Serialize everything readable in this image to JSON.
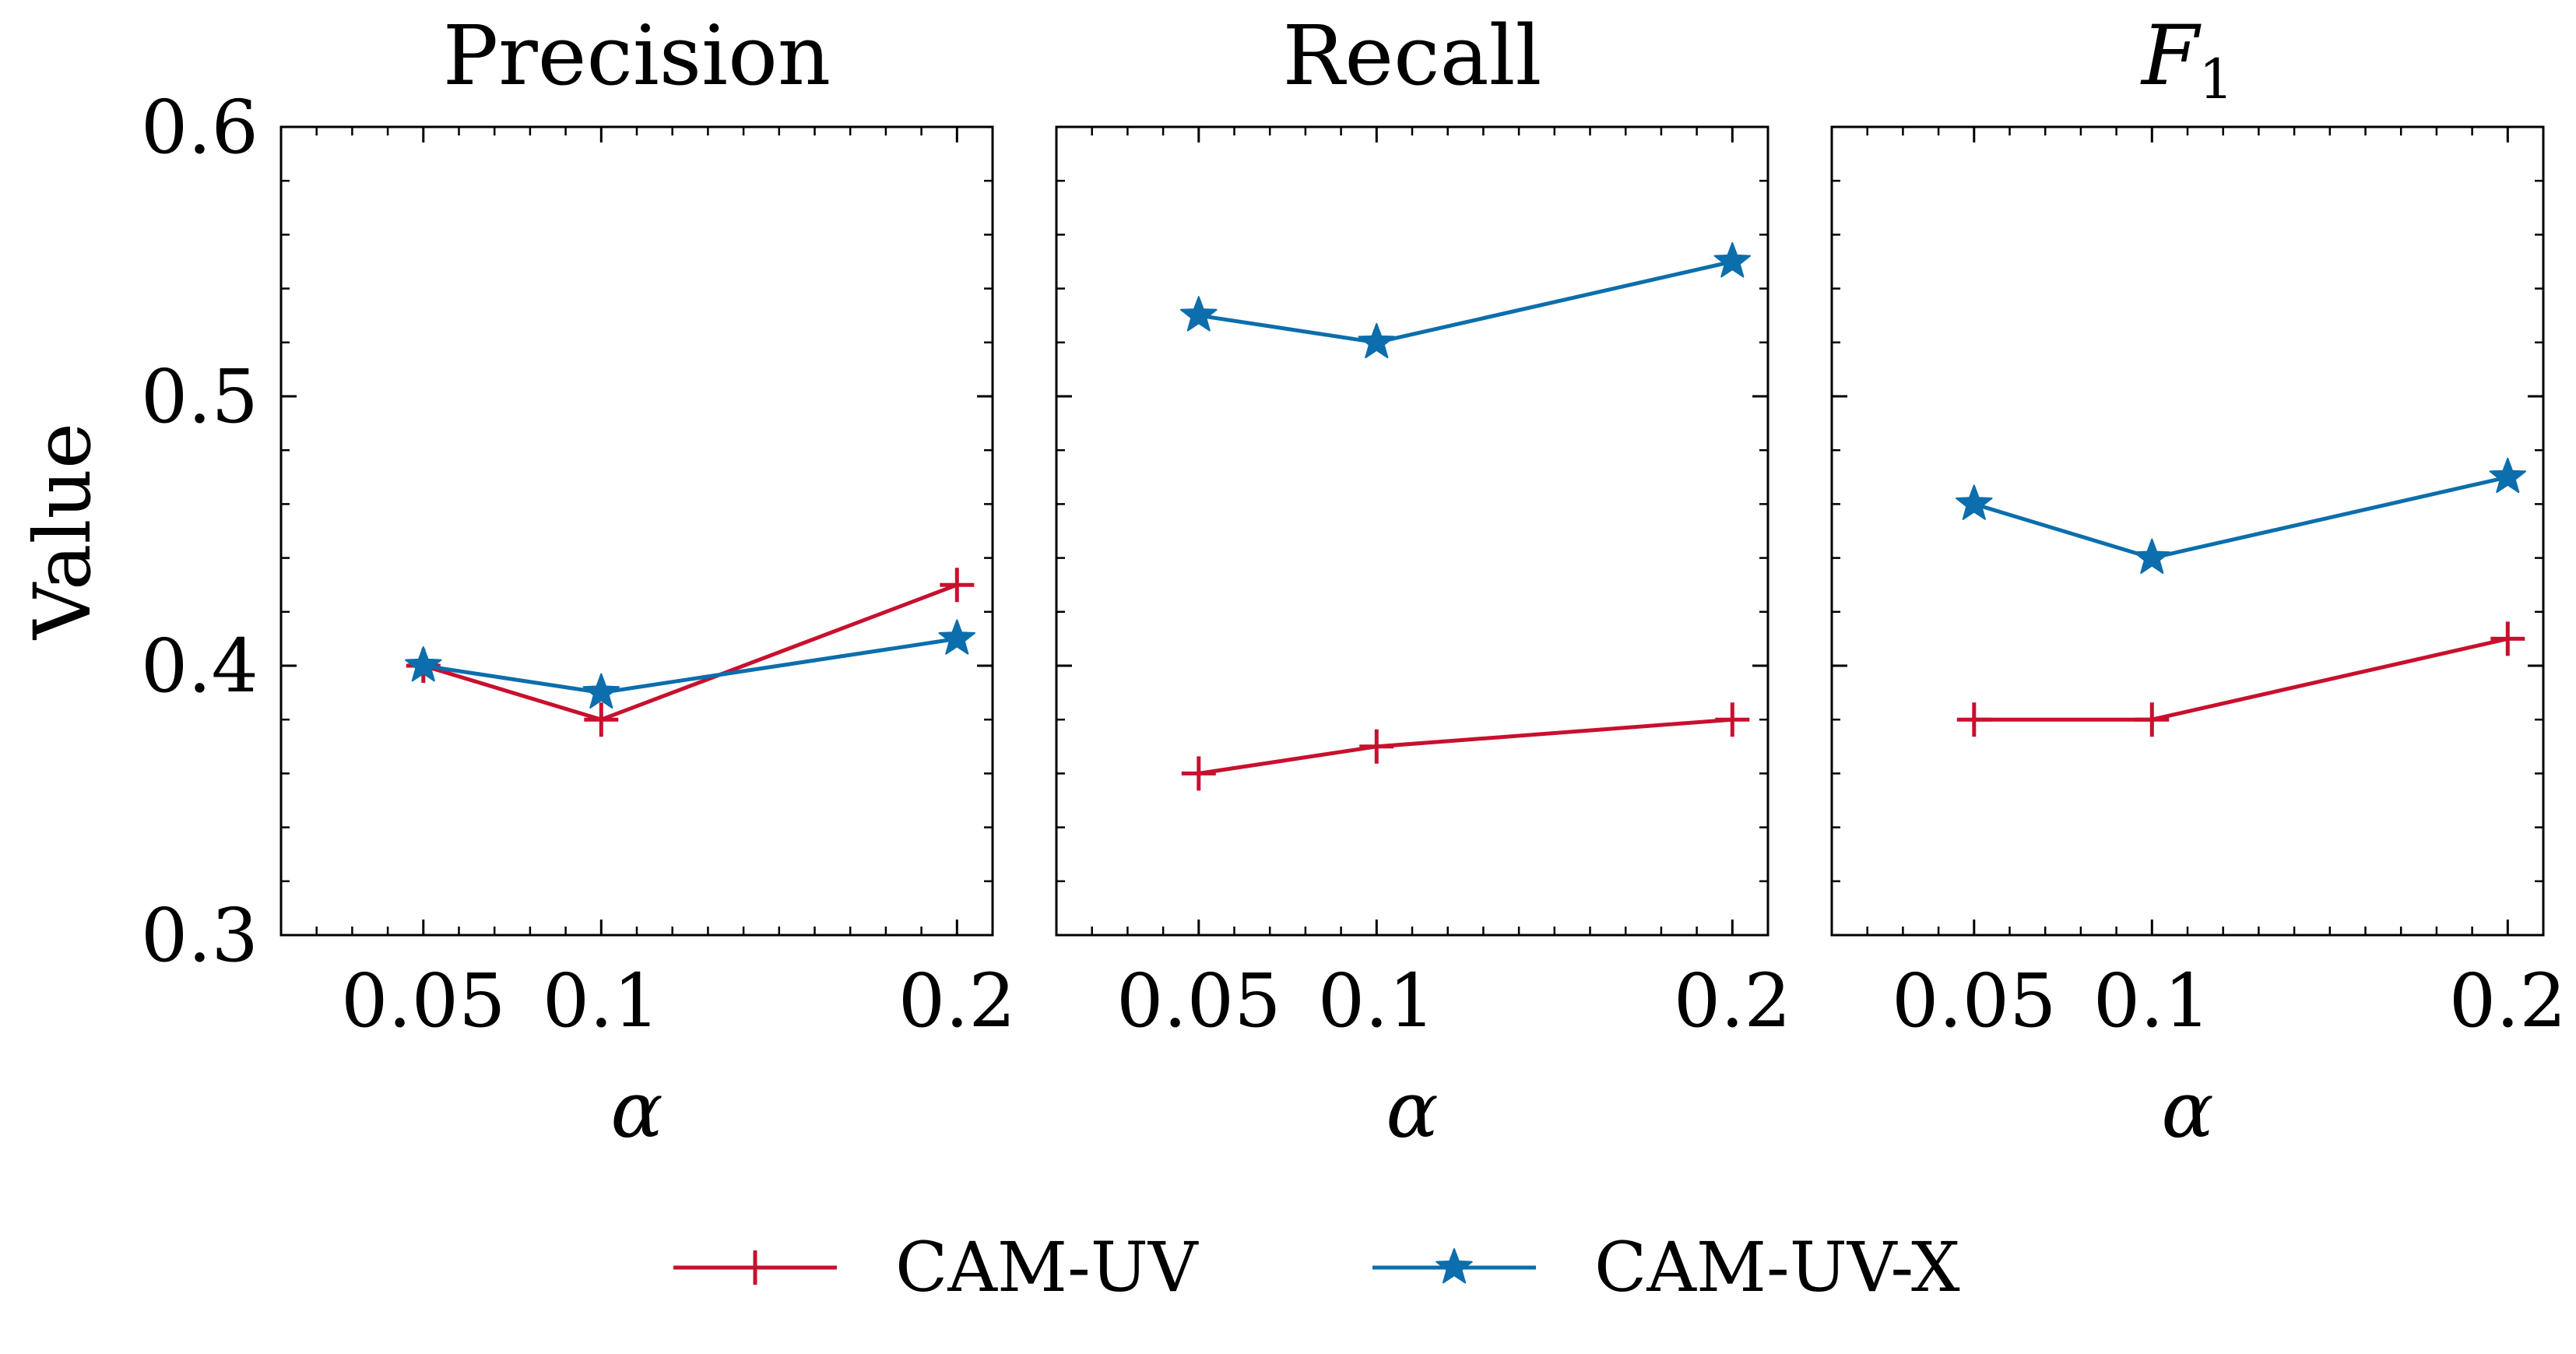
{
  "chart_data": [
    {
      "type": "line",
      "title": "Precision",
      "xlabel": "α",
      "ylabel": "Value",
      "x": [
        0.05,
        0.1,
        0.2
      ],
      "xtick_labels": [
        "0.05",
        "0.1",
        "0.2"
      ],
      "xlim": [
        0.01,
        0.21
      ],
      "ylim": [
        0.3,
        0.6
      ],
      "yticks": [
        0.3,
        0.4,
        0.5,
        0.6
      ],
      "ytick_labels": [
        "0.3",
        "0.4",
        "0.5",
        "0.6"
      ],
      "series": [
        {
          "name": "CAM-UV",
          "values": [
            0.4,
            0.38,
            0.43
          ]
        },
        {
          "name": "CAM-UV-X",
          "values": [
            0.4,
            0.39,
            0.41
          ]
        }
      ]
    },
    {
      "type": "line",
      "title": "Recall",
      "xlabel": "α",
      "ylabel": "",
      "x": [
        0.05,
        0.1,
        0.2
      ],
      "xtick_labels": [
        "0.05",
        "0.1",
        "0.2"
      ],
      "xlim": [
        0.01,
        0.21
      ],
      "ylim": [
        0.3,
        0.6
      ],
      "yticks": [
        0.3,
        0.4,
        0.5,
        0.6
      ],
      "ytick_labels": [],
      "series": [
        {
          "name": "CAM-UV",
          "values": [
            0.36,
            0.37,
            0.38
          ]
        },
        {
          "name": "CAM-UV-X",
          "values": [
            0.53,
            0.52,
            0.55
          ]
        }
      ]
    },
    {
      "type": "line",
      "title": "F",
      "title_subscript": "1",
      "xlabel": "α",
      "ylabel": "",
      "x": [
        0.05,
        0.1,
        0.2
      ],
      "xtick_labels": [
        "0.05",
        "0.1",
        "0.2"
      ],
      "xlim": [
        0.01,
        0.21
      ],
      "ylim": [
        0.3,
        0.6
      ],
      "yticks": [
        0.3,
        0.4,
        0.5,
        0.6
      ],
      "ytick_labels": [],
      "series": [
        {
          "name": "CAM-UV",
          "values": [
            0.38,
            0.38,
            0.41
          ]
        },
        {
          "name": "CAM-UV-X",
          "values": [
            0.46,
            0.44,
            0.47
          ]
        }
      ]
    }
  ],
  "legend": {
    "position": "bottom-center",
    "entries": [
      {
        "name": "CAM-UV",
        "color": "#c8102e",
        "marker": "plus"
      },
      {
        "name": "CAM-UV-X",
        "color": "#0c6eac",
        "marker": "star"
      }
    ]
  },
  "colors": {
    "CAM-UV": "#c8102e",
    "CAM-UV-X": "#0c6eac"
  }
}
